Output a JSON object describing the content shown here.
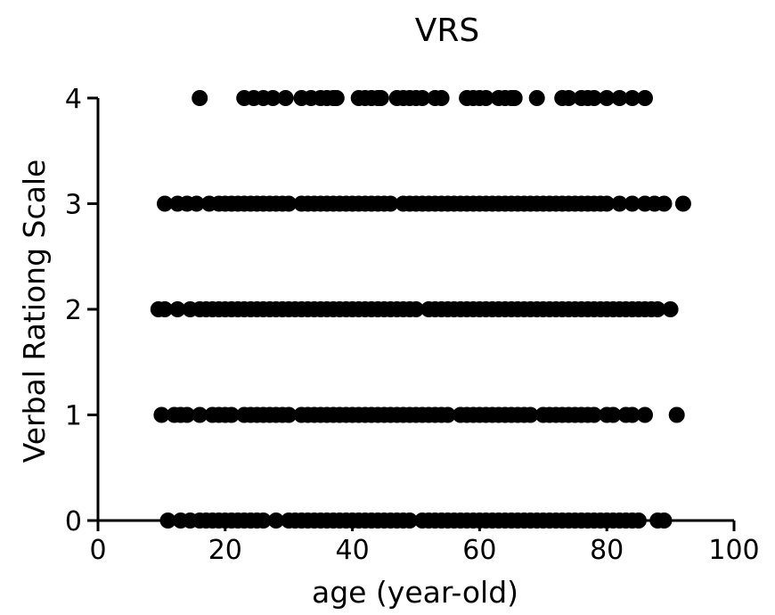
{
  "chart_data": {
    "type": "scatter",
    "title": "VRS",
    "xlabel": "age (year-old)",
    "ylabel": "Verbal Rationg Scale",
    "xlim": [
      0,
      100
    ],
    "ylim": [
      0,
      4
    ],
    "x_ticks": [
      "0",
      "20",
      "40",
      "60",
      "80",
      "100"
    ],
    "y_ticks": [
      "0",
      "1",
      "2",
      "3",
      "4"
    ],
    "grid": false,
    "marker_color": "#000000",
    "series": [
      {
        "points": [
          [
            16,
            4
          ],
          [
            23,
            4
          ],
          [
            24.5,
            4
          ],
          [
            26,
            4
          ],
          [
            27.5,
            4
          ],
          [
            29.5,
            4
          ],
          [
            32,
            4
          ],
          [
            33.5,
            4
          ],
          [
            35,
            4
          ],
          [
            36,
            4
          ],
          [
            37,
            4
          ],
          [
            37.5,
            4
          ],
          [
            41,
            4
          ],
          [
            42,
            4
          ],
          [
            43,
            4
          ],
          [
            44,
            4
          ],
          [
            44.5,
            4
          ],
          [
            47,
            4
          ],
          [
            48,
            4
          ],
          [
            49,
            4
          ],
          [
            50,
            4
          ],
          [
            51,
            4
          ],
          [
            53,
            4
          ],
          [
            54,
            4
          ],
          [
            58,
            4
          ],
          [
            59,
            4
          ],
          [
            60,
            4
          ],
          [
            61,
            4
          ],
          [
            63,
            4
          ],
          [
            64,
            4
          ],
          [
            65,
            4
          ],
          [
            65.5,
            4
          ],
          [
            69,
            4
          ],
          [
            73,
            4
          ],
          [
            74,
            4
          ],
          [
            76,
            4
          ],
          [
            77,
            4
          ],
          [
            78,
            4
          ],
          [
            80,
            4
          ],
          [
            82,
            4
          ],
          [
            84,
            4
          ],
          [
            86,
            4
          ],
          [
            10.5,
            3
          ],
          [
            12.5,
            3
          ],
          [
            14,
            3
          ],
          [
            15.5,
            3
          ],
          [
            17.5,
            3
          ],
          [
            19,
            3
          ],
          [
            20,
            3
          ],
          [
            21,
            3
          ],
          [
            22,
            3
          ],
          [
            23,
            3
          ],
          [
            24,
            3
          ],
          [
            25,
            3
          ],
          [
            26,
            3
          ],
          [
            27,
            3
          ],
          [
            28,
            3
          ],
          [
            29,
            3
          ],
          [
            30,
            3
          ],
          [
            32,
            3
          ],
          [
            33,
            3
          ],
          [
            34,
            3
          ],
          [
            35,
            3
          ],
          [
            36,
            3
          ],
          [
            37,
            3
          ],
          [
            38,
            3
          ],
          [
            39,
            3
          ],
          [
            40,
            3
          ],
          [
            41,
            3
          ],
          [
            42,
            3
          ],
          [
            43,
            3
          ],
          [
            44,
            3
          ],
          [
            45,
            3
          ],
          [
            46,
            3
          ],
          [
            48,
            3
          ],
          [
            49,
            3
          ],
          [
            50,
            3
          ],
          [
            51,
            3
          ],
          [
            52,
            3
          ],
          [
            53,
            3
          ],
          [
            54,
            3
          ],
          [
            55,
            3
          ],
          [
            56,
            3
          ],
          [
            57,
            3
          ],
          [
            58,
            3
          ],
          [
            59,
            3
          ],
          [
            60,
            3
          ],
          [
            61,
            3
          ],
          [
            62,
            3
          ],
          [
            63,
            3
          ],
          [
            64,
            3
          ],
          [
            65,
            3
          ],
          [
            66,
            3
          ],
          [
            67,
            3
          ],
          [
            68,
            3
          ],
          [
            69,
            3
          ],
          [
            70,
            3
          ],
          [
            71,
            3
          ],
          [
            72,
            3
          ],
          [
            73,
            3
          ],
          [
            74,
            3
          ],
          [
            75,
            3
          ],
          [
            76,
            3
          ],
          [
            77,
            3
          ],
          [
            78,
            3
          ],
          [
            79,
            3
          ],
          [
            80,
            3
          ],
          [
            82,
            3
          ],
          [
            84,
            3
          ],
          [
            86,
            3
          ],
          [
            87.5,
            3
          ],
          [
            89,
            3
          ],
          [
            92,
            3
          ],
          [
            9.5,
            2
          ],
          [
            10.5,
            2
          ],
          [
            12.5,
            2
          ],
          [
            14.5,
            2
          ],
          [
            16,
            2
          ],
          [
            17,
            2
          ],
          [
            18,
            2
          ],
          [
            19,
            2
          ],
          [
            20,
            2
          ],
          [
            21,
            2
          ],
          [
            22,
            2
          ],
          [
            23,
            2
          ],
          [
            24,
            2
          ],
          [
            25,
            2
          ],
          [
            26,
            2
          ],
          [
            27,
            2
          ],
          [
            28,
            2
          ],
          [
            29,
            2
          ],
          [
            30,
            2
          ],
          [
            31,
            2
          ],
          [
            32,
            2
          ],
          [
            33,
            2
          ],
          [
            34,
            2
          ],
          [
            35,
            2
          ],
          [
            36,
            2
          ],
          [
            37,
            2
          ],
          [
            38,
            2
          ],
          [
            39,
            2
          ],
          [
            40,
            2
          ],
          [
            41,
            2
          ],
          [
            42,
            2
          ],
          [
            43,
            2
          ],
          [
            44,
            2
          ],
          [
            45,
            2
          ],
          [
            46,
            2
          ],
          [
            47,
            2
          ],
          [
            48,
            2
          ],
          [
            49,
            2
          ],
          [
            50,
            2
          ],
          [
            52,
            2
          ],
          [
            53,
            2
          ],
          [
            54,
            2
          ],
          [
            55,
            2
          ],
          [
            56,
            2
          ],
          [
            57,
            2
          ],
          [
            58,
            2
          ],
          [
            59,
            2
          ],
          [
            60,
            2
          ],
          [
            61,
            2
          ],
          [
            62,
            2
          ],
          [
            63,
            2
          ],
          [
            64,
            2
          ],
          [
            65,
            2
          ],
          [
            66,
            2
          ],
          [
            67,
            2
          ],
          [
            68,
            2
          ],
          [
            69,
            2
          ],
          [
            70,
            2
          ],
          [
            71,
            2
          ],
          [
            72,
            2
          ],
          [
            73,
            2
          ],
          [
            74,
            2
          ],
          [
            75,
            2
          ],
          [
            76,
            2
          ],
          [
            77,
            2
          ],
          [
            78,
            2
          ],
          [
            79,
            2
          ],
          [
            80,
            2
          ],
          [
            81,
            2
          ],
          [
            82,
            2
          ],
          [
            83,
            2
          ],
          [
            84,
            2
          ],
          [
            85,
            2
          ],
          [
            86,
            2
          ],
          [
            87,
            2
          ],
          [
            88,
            2
          ],
          [
            90,
            2
          ],
          [
            10,
            1
          ],
          [
            12,
            1
          ],
          [
            13,
            1
          ],
          [
            14,
            1
          ],
          [
            16,
            1
          ],
          [
            18,
            1
          ],
          [
            19,
            1
          ],
          [
            20,
            1
          ],
          [
            21,
            1
          ],
          [
            23,
            1
          ],
          [
            24,
            1
          ],
          [
            25,
            1
          ],
          [
            26,
            1
          ],
          [
            27,
            1
          ],
          [
            28,
            1
          ],
          [
            29,
            1
          ],
          [
            30,
            1
          ],
          [
            32,
            1
          ],
          [
            33,
            1
          ],
          [
            34,
            1
          ],
          [
            35,
            1
          ],
          [
            36,
            1
          ],
          [
            37,
            1
          ],
          [
            38,
            1
          ],
          [
            39,
            1
          ],
          [
            40,
            1
          ],
          [
            41,
            1
          ],
          [
            42,
            1
          ],
          [
            43,
            1
          ],
          [
            44,
            1
          ],
          [
            45,
            1
          ],
          [
            46,
            1
          ],
          [
            47,
            1
          ],
          [
            48,
            1
          ],
          [
            49,
            1
          ],
          [
            50,
            1
          ],
          [
            51,
            1
          ],
          [
            52,
            1
          ],
          [
            53,
            1
          ],
          [
            54,
            1
          ],
          [
            55,
            1
          ],
          [
            57,
            1
          ],
          [
            58,
            1
          ],
          [
            59,
            1
          ],
          [
            60,
            1
          ],
          [
            61,
            1
          ],
          [
            62,
            1
          ],
          [
            63,
            1
          ],
          [
            64,
            1
          ],
          [
            65,
            1
          ],
          [
            66,
            1
          ],
          [
            67,
            1
          ],
          [
            68,
            1
          ],
          [
            70,
            1
          ],
          [
            71,
            1
          ],
          [
            72,
            1
          ],
          [
            73,
            1
          ],
          [
            74,
            1
          ],
          [
            75,
            1
          ],
          [
            76,
            1
          ],
          [
            77,
            1
          ],
          [
            78,
            1
          ],
          [
            80,
            1
          ],
          [
            81,
            1
          ],
          [
            83,
            1
          ],
          [
            84,
            1
          ],
          [
            86,
            1
          ],
          [
            91,
            1
          ],
          [
            11,
            0
          ],
          [
            13,
            0
          ],
          [
            14.5,
            0
          ],
          [
            16,
            0
          ],
          [
            17,
            0
          ],
          [
            18,
            0
          ],
          [
            19,
            0
          ],
          [
            20,
            0
          ],
          [
            21,
            0
          ],
          [
            22,
            0
          ],
          [
            23,
            0
          ],
          [
            24,
            0
          ],
          [
            25,
            0
          ],
          [
            26,
            0
          ],
          [
            28,
            0
          ],
          [
            30,
            0
          ],
          [
            31,
            0
          ],
          [
            32,
            0
          ],
          [
            33,
            0
          ],
          [
            34,
            0
          ],
          [
            35,
            0
          ],
          [
            36,
            0
          ],
          [
            37,
            0
          ],
          [
            38,
            0
          ],
          [
            39,
            0
          ],
          [
            40,
            0
          ],
          [
            41,
            0
          ],
          [
            42,
            0
          ],
          [
            43,
            0
          ],
          [
            44,
            0
          ],
          [
            45,
            0
          ],
          [
            46,
            0
          ],
          [
            47,
            0
          ],
          [
            48,
            0
          ],
          [
            49,
            0
          ],
          [
            51,
            0
          ],
          [
            52,
            0
          ],
          [
            53,
            0
          ],
          [
            54,
            0
          ],
          [
            55,
            0
          ],
          [
            56,
            0
          ],
          [
            57,
            0
          ],
          [
            58,
            0
          ],
          [
            59,
            0
          ],
          [
            60,
            0
          ],
          [
            61,
            0
          ],
          [
            62,
            0
          ],
          [
            63,
            0
          ],
          [
            64,
            0
          ],
          [
            65,
            0
          ],
          [
            66,
            0
          ],
          [
            67,
            0
          ],
          [
            68,
            0
          ],
          [
            69,
            0
          ],
          [
            70,
            0
          ],
          [
            71,
            0
          ],
          [
            72,
            0
          ],
          [
            73,
            0
          ],
          [
            74,
            0
          ],
          [
            75,
            0
          ],
          [
            76,
            0
          ],
          [
            77,
            0
          ],
          [
            78,
            0
          ],
          [
            79,
            0
          ],
          [
            80,
            0
          ],
          [
            81,
            0
          ],
          [
            82,
            0
          ],
          [
            83,
            0
          ],
          [
            84,
            0
          ],
          [
            85,
            0
          ],
          [
            88,
            0
          ],
          [
            89,
            0
          ]
        ]
      }
    ]
  }
}
